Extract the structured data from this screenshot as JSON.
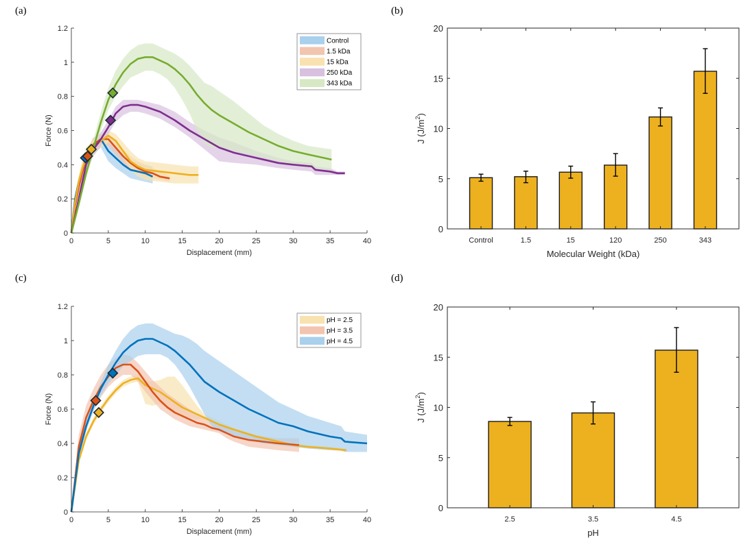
{
  "chart_data": [
    {
      "panel": "(a)",
      "type": "line",
      "xlabel": "Displacement (mm)",
      "ylabel": "Force (N)",
      "xlim": [
        0,
        40
      ],
      "ylim": [
        0,
        1.2
      ],
      "xticks": [
        "0",
        "5",
        "10",
        "15",
        "20",
        "25",
        "30",
        "35",
        "40"
      ],
      "yticks": [
        "0",
        "0.2",
        "0.4",
        "0.6",
        "0.8",
        "1",
        "1.2"
      ],
      "grid": false,
      "legend_position": "top-right",
      "series": [
        {
          "name": "Control",
          "color": "#0072BD",
          "band_color": "#a9d0ec",
          "x": [
            0,
            0.5,
            1,
            1.5,
            2,
            3,
            4,
            5,
            6,
            7,
            8,
            9,
            10,
            11
          ],
          "y": [
            0,
            0.2,
            0.3,
            0.37,
            0.43,
            0.5,
            0.55,
            0.48,
            0.44,
            0.4,
            0.37,
            0.36,
            0.35,
            0.33
          ],
          "band_low": [
            0,
            0.18,
            0.27,
            0.33,
            0.39,
            0.46,
            0.5,
            0.42,
            0.38,
            0.35,
            0.32,
            0.31,
            0.3,
            0.29
          ],
          "band_high": [
            0,
            0.23,
            0.33,
            0.41,
            0.48,
            0.56,
            0.58,
            0.54,
            0.49,
            0.45,
            0.42,
            0.41,
            0.4,
            0.39
          ],
          "marker": {
            "x": 1.9,
            "y": 0.44
          }
        },
        {
          "name": "1.5 kDa",
          "color": "#D95319",
          "band_color": "#f2c5b0",
          "x": [
            0,
            0.5,
            1,
            1.5,
            2,
            3,
            4,
            5,
            6,
            7,
            8,
            9,
            10,
            11,
            12,
            13.3
          ],
          "y": [
            0,
            0.16,
            0.27,
            0.36,
            0.43,
            0.52,
            0.55,
            0.55,
            0.5,
            0.45,
            0.41,
            0.38,
            0.36,
            0.35,
            0.33,
            0.32
          ],
          "band_low": [
            0,
            0.13,
            0.23,
            0.31,
            0.38,
            0.48,
            0.52,
            0.51,
            0.46,
            0.41,
            0.37,
            0.35,
            0.33,
            0.32,
            0.31,
            0.3
          ],
          "band_high": [
            0,
            0.2,
            0.31,
            0.41,
            0.48,
            0.56,
            0.58,
            0.58,
            0.54,
            0.49,
            0.45,
            0.42,
            0.4,
            0.38,
            0.36,
            0.34
          ],
          "marker": {
            "x": 2.2,
            "y": 0.45
          }
        },
        {
          "name": "15 kDa",
          "color": "#EDB120",
          "band_color": "#f8e2b0",
          "x": [
            0,
            0.5,
            1,
            1.5,
            2,
            3,
            4,
            5,
            6,
            7,
            8,
            9,
            10,
            12,
            14,
            16,
            17.2
          ],
          "y": [
            0,
            0.18,
            0.3,
            0.38,
            0.44,
            0.5,
            0.54,
            0.57,
            0.54,
            0.48,
            0.42,
            0.39,
            0.37,
            0.36,
            0.35,
            0.34,
            0.34
          ],
          "band_low": [
            0,
            0.14,
            0.26,
            0.34,
            0.4,
            0.46,
            0.5,
            0.53,
            0.5,
            0.44,
            0.37,
            0.33,
            0.31,
            0.3,
            0.29,
            0.29,
            0.29
          ],
          "band_high": [
            0,
            0.22,
            0.34,
            0.43,
            0.5,
            0.55,
            0.58,
            0.6,
            0.58,
            0.53,
            0.48,
            0.44,
            0.42,
            0.41,
            0.4,
            0.39,
            0.39
          ],
          "marker": {
            "x": 2.7,
            "y": 0.49
          }
        },
        {
          "name": "250 kDa",
          "color": "#7E2F8E",
          "band_color": "#d8c0df",
          "x": [
            0,
            1,
            2,
            3,
            4,
            5,
            6,
            7,
            8,
            9,
            10,
            12,
            14,
            16,
            18,
            20,
            22,
            25,
            28,
            30,
            32.5,
            33,
            35,
            36,
            37
          ],
          "y": [
            0,
            0.2,
            0.4,
            0.49,
            0.55,
            0.62,
            0.7,
            0.74,
            0.75,
            0.75,
            0.74,
            0.71,
            0.66,
            0.6,
            0.55,
            0.5,
            0.47,
            0.44,
            0.41,
            0.4,
            0.39,
            0.37,
            0.36,
            0.35,
            0.35
          ],
          "band_low": [
            0,
            0.17,
            0.36,
            0.45,
            0.51,
            0.58,
            0.65,
            0.69,
            0.71,
            0.71,
            0.7,
            0.67,
            0.62,
            0.56,
            0.49,
            0.42,
            0.41,
            0.4,
            0.38,
            0.37,
            0.36,
            0.34,
            0.34,
            0.34,
            0.34
          ],
          "band_high": [
            0,
            0.23,
            0.44,
            0.53,
            0.59,
            0.66,
            0.74,
            0.78,
            0.78,
            0.78,
            0.77,
            0.75,
            0.71,
            0.65,
            0.6,
            0.56,
            0.53,
            0.48,
            0.44,
            0.42,
            0.41,
            0.39,
            0.38,
            0.36,
            0.36
          ],
          "marker": {
            "x": 5.3,
            "y": 0.66
          }
        },
        {
          "name": "343 kDa",
          "color": "#77AC30",
          "band_color": "#d6e8c4",
          "x": [
            0,
            1,
            2,
            3,
            4,
            5,
            6,
            7,
            8,
            9,
            10,
            11,
            12,
            13,
            14,
            15,
            16,
            17,
            18,
            19,
            20,
            22,
            24,
            26,
            28,
            30,
            32,
            35.2
          ],
          "y": [
            0,
            0.17,
            0.35,
            0.5,
            0.65,
            0.78,
            0.87,
            0.94,
            0.99,
            1.02,
            1.03,
            1.03,
            1.01,
            0.99,
            0.96,
            0.92,
            0.87,
            0.81,
            0.76,
            0.72,
            0.69,
            0.64,
            0.59,
            0.55,
            0.51,
            0.48,
            0.46,
            0.43
          ],
          "band_low": [
            0,
            0.15,
            0.32,
            0.46,
            0.6,
            0.72,
            0.8,
            0.86,
            0.91,
            0.93,
            0.95,
            0.95,
            0.93,
            0.9,
            0.85,
            0.78,
            0.7,
            0.6,
            0.52,
            0.5,
            0.5,
            0.48,
            0.46,
            0.44,
            0.42,
            0.4,
            0.38,
            0.37
          ],
          "band_high": [
            0,
            0.2,
            0.38,
            0.55,
            0.71,
            0.85,
            0.95,
            1.02,
            1.07,
            1.1,
            1.11,
            1.11,
            1.09,
            1.07,
            1.05,
            1.02,
            0.98,
            0.93,
            0.88,
            0.86,
            0.83,
            0.77,
            0.7,
            0.63,
            0.58,
            0.54,
            0.51,
            0.49
          ],
          "marker": {
            "x": 5.6,
            "y": 0.82
          }
        }
      ]
    },
    {
      "panel": "(b)",
      "type": "bar",
      "xlabel": "Molecular Weight (kDa)",
      "ylabel_main": "J (J/m",
      "ylabel_sup": "2",
      "ylabel_end": ")",
      "ylim": [
        0,
        20
      ],
      "yticks": [
        "0",
        "5",
        "10",
        "15",
        "20"
      ],
      "categories": [
        "Control",
        "1.5",
        "15",
        "120",
        "250",
        "343"
      ],
      "values": [
        5.1,
        5.2,
        5.65,
        6.35,
        11.15,
        15.7
      ],
      "error_low": [
        4.75,
        4.6,
        5.05,
        5.25,
        10.25,
        13.5
      ],
      "error_high": [
        5.45,
        5.75,
        6.25,
        7.5,
        12.05,
        17.95
      ],
      "bar_color": "#EDB120"
    },
    {
      "panel": "(c)",
      "type": "line",
      "xlabel": "Displacement (mm)",
      "ylabel": "Force (N)",
      "xlim": [
        0,
        40
      ],
      "ylim": [
        0,
        1.2
      ],
      "xticks": [
        "0",
        "5",
        "10",
        "15",
        "20",
        "25",
        "30",
        "35",
        "40"
      ],
      "yticks": [
        "0",
        "0.2",
        "0.4",
        "0.6",
        "0.8",
        "1",
        "1.2"
      ],
      "grid": false,
      "legend_position": "top-right",
      "series": [
        {
          "name": "pH = 2.5",
          "color": "#EDB120",
          "band_color": "#f8e2b0",
          "x": [
            0,
            1,
            2,
            3,
            4,
            5,
            6,
            7,
            8,
            9,
            10,
            11,
            12,
            13,
            14,
            15,
            16,
            17,
            18,
            20,
            22,
            25,
            28,
            30,
            32,
            35,
            37.2
          ],
          "y": [
            0,
            0.3,
            0.44,
            0.53,
            0.6,
            0.66,
            0.71,
            0.75,
            0.77,
            0.78,
            0.74,
            0.72,
            0.7,
            0.67,
            0.64,
            0.61,
            0.59,
            0.57,
            0.55,
            0.51,
            0.48,
            0.44,
            0.41,
            0.39,
            0.38,
            0.37,
            0.36
          ],
          "band_low": [
            0,
            0.28,
            0.42,
            0.51,
            0.58,
            0.64,
            0.69,
            0.73,
            0.75,
            0.76,
            0.63,
            0.62,
            0.63,
            0.6,
            0.57,
            0.56,
            0.55,
            0.54,
            0.54,
            0.5,
            0.47,
            0.43,
            0.4,
            0.38,
            0.37,
            0.36,
            0.35
          ],
          "band_high": [
            0,
            0.32,
            0.46,
            0.55,
            0.62,
            0.68,
            0.73,
            0.77,
            0.79,
            0.8,
            0.77,
            0.76,
            0.77,
            0.79,
            0.79,
            0.74,
            0.68,
            0.62,
            0.57,
            0.53,
            0.49,
            0.45,
            0.42,
            0.4,
            0.39,
            0.38,
            0.37
          ],
          "marker": {
            "x": 3.7,
            "y": 0.58
          }
        },
        {
          "name": "pH = 3.5",
          "color": "#D95319",
          "band_color": "#f2c5b0",
          "x": [
            0,
            1,
            2,
            3,
            4,
            5,
            6,
            7,
            8,
            9,
            10,
            11,
            12,
            13,
            14,
            15,
            16,
            17,
            18,
            19,
            20,
            21,
            22,
            24,
            26,
            28,
            30.8
          ],
          "y": [
            0,
            0.38,
            0.55,
            0.65,
            0.73,
            0.79,
            0.84,
            0.86,
            0.86,
            0.82,
            0.76,
            0.7,
            0.65,
            0.61,
            0.58,
            0.56,
            0.54,
            0.52,
            0.51,
            0.49,
            0.48,
            0.46,
            0.44,
            0.42,
            0.41,
            0.4,
            0.39
          ],
          "band_low": [
            0,
            0.33,
            0.5,
            0.59,
            0.67,
            0.73,
            0.77,
            0.8,
            0.8,
            0.76,
            0.7,
            0.65,
            0.6,
            0.57,
            0.54,
            0.52,
            0.5,
            0.49,
            0.48,
            0.47,
            0.46,
            0.43,
            0.41,
            0.38,
            0.37,
            0.36,
            0.35
          ],
          "band_high": [
            0,
            0.45,
            0.62,
            0.72,
            0.8,
            0.86,
            0.9,
            0.92,
            0.91,
            0.87,
            0.82,
            0.77,
            0.73,
            0.69,
            0.66,
            0.63,
            0.6,
            0.57,
            0.55,
            0.53,
            0.51,
            0.49,
            0.47,
            0.45,
            0.44,
            0.43,
            0.43
          ],
          "marker": {
            "x": 3.3,
            "y": 0.65
          }
        },
        {
          "name": "pH = 4.5",
          "color": "#0072BD",
          "band_color": "#a9d0ec",
          "x": [
            0,
            1,
            2,
            3,
            4,
            5,
            6,
            7,
            8,
            9,
            10,
            11,
            12,
            13,
            14,
            15,
            16,
            17,
            18,
            19,
            20,
            22,
            24,
            26,
            28,
            30,
            32,
            35,
            36.5,
            37,
            40
          ],
          "y": [
            0,
            0.34,
            0.5,
            0.62,
            0.72,
            0.8,
            0.87,
            0.93,
            0.97,
            1.0,
            1.01,
            1.01,
            0.99,
            0.97,
            0.94,
            0.9,
            0.86,
            0.81,
            0.76,
            0.73,
            0.7,
            0.65,
            0.6,
            0.56,
            0.52,
            0.5,
            0.47,
            0.44,
            0.43,
            0.41,
            0.4
          ],
          "band_low": [
            0,
            0.31,
            0.47,
            0.59,
            0.68,
            0.75,
            0.8,
            0.85,
            0.88,
            0.91,
            0.92,
            0.92,
            0.92,
            0.9,
            0.86,
            0.8,
            0.73,
            0.65,
            0.57,
            0.5,
            0.47,
            0.44,
            0.42,
            0.4,
            0.39,
            0.38,
            0.37,
            0.36,
            0.36,
            0.35,
            0.35
          ],
          "band_high": [
            0,
            0.37,
            0.53,
            0.65,
            0.76,
            0.86,
            0.94,
            1.01,
            1.06,
            1.09,
            1.1,
            1.1,
            1.08,
            1.06,
            1.04,
            1.03,
            1.01,
            0.98,
            0.94,
            0.91,
            0.88,
            0.82,
            0.76,
            0.7,
            0.64,
            0.6,
            0.56,
            0.52,
            0.5,
            0.47,
            0.45
          ],
          "marker": {
            "x": 5.6,
            "y": 0.81
          }
        }
      ]
    },
    {
      "panel": "(d)",
      "type": "bar",
      "xlabel": "pH",
      "ylabel_main": "J (J/m",
      "ylabel_sup": "2",
      "ylabel_end": ")",
      "ylim": [
        0,
        20
      ],
      "yticks": [
        "0",
        "5",
        "10",
        "15",
        "20"
      ],
      "categories": [
        "2.5",
        "3.5",
        "4.5"
      ],
      "values": [
        8.6,
        9.45,
        15.7
      ],
      "error_low": [
        8.2,
        8.35,
        13.5
      ],
      "error_high": [
        9.0,
        10.55,
        17.95
      ],
      "bar_color": "#EDB120"
    }
  ]
}
